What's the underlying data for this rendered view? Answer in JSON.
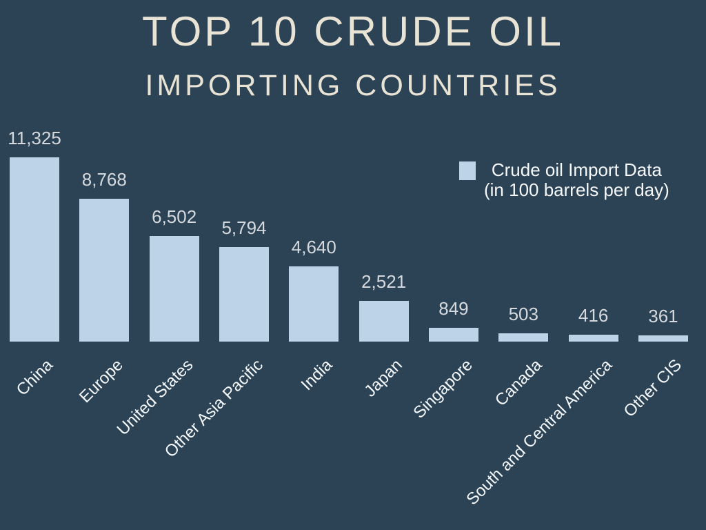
{
  "colors": {
    "background": "#2c4356",
    "bar": "#bcd3e8",
    "title_text": "#e9e3d5",
    "value_label_text": "#d5d9dd",
    "category_label_text": "#f3f7f9",
    "legend_text": "#f6f8fa"
  },
  "title": {
    "line1": "TOP 10 CRUDE OIL",
    "line2": "IMPORTING COUNTRIES"
  },
  "legend": {
    "swatch_color": "#bcd3e8",
    "label_line1": "Crude oil Import Data",
    "label_line2": "(in 100 barrels per day)"
  },
  "chart_data": {
    "type": "bar",
    "title": "TOP 10 CRUDE OIL IMPORTING COUNTRIES",
    "xlabel": "",
    "ylabel": "",
    "grid": false,
    "legend_position": "upper right",
    "series_name": "Crude oil Import Data (in 100 barrels per day)",
    "categories": [
      "China",
      "Europe",
      "United States",
      "Other Asia Pacific",
      "India",
      "Japan",
      "Singapore",
      "Canada",
      "South and Central America",
      "Other CIS"
    ],
    "values": [
      11325,
      8768,
      6502,
      5794,
      4640,
      2521,
      849,
      503,
      416,
      361
    ],
    "value_labels": [
      "11,325",
      "8,768",
      "6,502",
      "5,794",
      "4,640",
      "2,521",
      "849",
      "503",
      "416",
      "361"
    ],
    "ylim": [
      0,
      11325
    ],
    "bar_color": "#bcd3e8",
    "label_rotation_deg": 45
  }
}
